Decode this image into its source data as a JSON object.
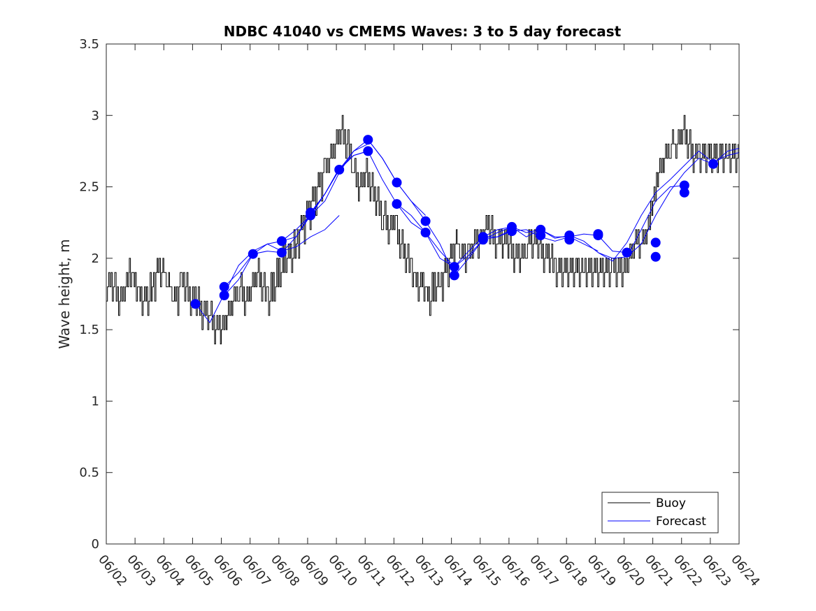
{
  "chart_data": {
    "type": "line",
    "title": "NDBC 41040 vs CMEMS Waves: 3 to 5 day forecast",
    "xlabel": "",
    "ylabel": "Wave height, m",
    "xlim": [
      "06/02",
      "06/24"
    ],
    "ylim": [
      0,
      3.5
    ],
    "x_ticks": [
      "06/02",
      "06/03",
      "06/04",
      "06/05",
      "06/06",
      "06/07",
      "06/08",
      "06/09",
      "06/10",
      "06/11",
      "06/12",
      "06/13",
      "06/14",
      "06/15",
      "06/16",
      "06/17",
      "06/18",
      "06/19",
      "06/20",
      "06/21",
      "06/22",
      "06/23",
      "06/24"
    ],
    "y_ticks": [
      "0",
      "0.5",
      "1",
      "1.5",
      "2",
      "2.5",
      "3",
      "3.5"
    ],
    "grid": false,
    "legend": {
      "position": "bottom-right",
      "entries": [
        "Buoy",
        "Forecast"
      ]
    },
    "colors": {
      "buoy": "#000000",
      "forecast": "#0000ff",
      "axes": "#262626"
    },
    "series": [
      {
        "name": "Buoy",
        "color": "#000000",
        "x_day": [
          0.0,
          0.3,
          0.5,
          0.7,
          0.8,
          1.0,
          1.2,
          1.4,
          1.6,
          1.8,
          2.0,
          2.2,
          2.4,
          2.6,
          2.8,
          3.0,
          3.2,
          3.4,
          3.6,
          3.8,
          4.0,
          4.2,
          4.4,
          4.6,
          4.8,
          5.0,
          5.2,
          5.4,
          5.6,
          5.8,
          6.0,
          6.2,
          6.4,
          6.6,
          6.8,
          7.0,
          7.2,
          7.4,
          7.6,
          7.8,
          8.0,
          8.2,
          8.4,
          8.6,
          8.8,
          9.0,
          9.2,
          9.4,
          9.6,
          9.8,
          10.0,
          10.2,
          10.4,
          10.6,
          10.8,
          11.0,
          11.2,
          11.4,
          11.6,
          11.8,
          12.0,
          12.2,
          12.4,
          12.6,
          12.8,
          13.0,
          13.2,
          13.4,
          13.6,
          13.8,
          14.0,
          14.2,
          14.4,
          14.6,
          14.8,
          15.0,
          15.2,
          15.4,
          15.6,
          15.8,
          16.0,
          16.2,
          16.4,
          16.6,
          16.8,
          17.0,
          17.2,
          17.4,
          17.6,
          17.8,
          18.0,
          18.2,
          18.4,
          18.6,
          18.8,
          19.0,
          19.2,
          19.4,
          19.6,
          19.8,
          20.0,
          20.2,
          20.4,
          20.6,
          20.8,
          21.0,
          21.2,
          21.4,
          21.6,
          21.8,
          22.0
        ],
        "values": [
          1.8,
          1.8,
          1.7,
          1.8,
          1.9,
          1.8,
          1.7,
          1.7,
          1.8,
          1.9,
          1.9,
          1.8,
          1.7,
          1.8,
          1.8,
          1.7,
          1.7,
          1.6,
          1.6,
          1.5,
          1.5,
          1.6,
          1.7,
          1.8,
          1.7,
          1.8,
          1.9,
          1.8,
          1.7,
          1.8,
          1.9,
          2.0,
          2.0,
          2.1,
          2.2,
          2.3,
          2.4,
          2.5,
          2.6,
          2.7,
          2.8,
          2.9,
          2.8,
          2.6,
          2.5,
          2.6,
          2.5,
          2.4,
          2.3,
          2.2,
          2.3,
          2.1,
          2.0,
          1.9,
          1.8,
          1.8,
          1.7,
          1.8,
          1.8,
          1.9,
          2.0,
          2.1,
          2.0,
          2.0,
          2.1,
          2.1,
          2.2,
          2.2,
          2.1,
          2.1,
          2.1,
          2.0,
          2.0,
          2.1,
          2.1,
          2.1,
          2.0,
          2.0,
          1.9,
          1.9,
          1.9,
          1.9,
          1.9,
          1.9,
          1.9,
          1.9,
          1.9,
          1.9,
          1.9,
          1.9,
          1.9,
          2.0,
          2.1,
          2.1,
          2.2,
          2.4,
          2.6,
          2.7,
          2.8,
          2.8,
          2.9,
          2.8,
          2.7,
          2.7,
          2.7,
          2.7,
          2.7,
          2.7,
          2.7,
          2.7,
          2.7
        ]
      },
      {
        "name": "Forecast",
        "color": "#0000ff",
        "runs": [
          {
            "x_day": [
              3.1,
              3.6,
              4.1,
              4.6,
              5.1,
              5.6,
              6.1,
              6.6,
              7.1,
              7.6,
              8.1
            ],
            "values": [
              1.68,
              1.55,
              1.75,
              1.95,
              2.05,
              2.1,
              2.05,
              2.08,
              2.15,
              2.2,
              2.3
            ]
          },
          {
            "x_day": [
              4.1,
              4.6,
              5.1,
              5.6,
              6.1,
              6.6,
              7.1,
              7.6,
              8.1,
              8.6,
              9.1
            ],
            "values": [
              1.8,
              1.9,
              2.03,
              2.1,
              2.12,
              2.15,
              2.3,
              2.4,
              2.6,
              2.75,
              2.8
            ]
          },
          {
            "x_day": [
              4.1,
              4.6,
              5.1,
              5.6,
              6.1,
              6.6,
              7.1,
              7.6,
              8.1,
              8.6,
              9.1
            ],
            "values": [
              1.74,
              1.85,
              2.03,
              2.05,
              2.04,
              2.15,
              2.31,
              2.45,
              2.62,
              2.72,
              2.75
            ]
          },
          {
            "x_day": [
              6.1,
              6.6,
              7.1,
              7.6,
              8.1,
              8.6,
              9.1,
              9.6,
              10.1,
              10.6,
              11.1
            ],
            "values": [
              2.12,
              2.2,
              2.3,
              2.45,
              2.62,
              2.75,
              2.83,
              2.7,
              2.53,
              2.4,
              2.3
            ]
          },
          {
            "x_day": [
              7.1,
              7.6,
              8.1,
              8.6,
              9.1,
              9.6,
              10.1,
              10.6,
              11.1,
              11.6,
              12.1
            ],
            "values": [
              2.32,
              2.45,
              2.63,
              2.72,
              2.75,
              2.55,
              2.38,
              2.25,
              2.18,
              2.05,
              1.94
            ]
          },
          {
            "x_day": [
              9.1,
              9.6,
              10.1,
              10.6,
              11.1,
              11.6,
              12.1,
              12.6,
              13.1,
              13.6,
              14.1
            ],
            "values": [
              2.83,
              2.7,
              2.53,
              2.4,
              2.26,
              2.1,
              1.88,
              2.0,
              2.13,
              2.15,
              2.2
            ]
          },
          {
            "x_day": [
              10.1,
              10.6,
              11.1,
              11.6,
              12.1,
              12.6,
              13.1,
              13.6,
              14.1,
              14.6,
              15.1
            ],
            "values": [
              2.38,
              2.3,
              2.18,
              2.0,
              1.94,
              2.05,
              2.15,
              2.2,
              2.22,
              2.15,
              2.2
            ]
          },
          {
            "x_day": [
              12.1,
              12.6,
              13.1,
              13.6,
              14.1,
              14.6,
              15.1,
              15.6,
              16.1,
              16.6,
              17.1
            ],
            "values": [
              1.94,
              2.02,
              2.13,
              2.18,
              2.22,
              2.18,
              2.2,
              2.15,
              2.15,
              2.1,
              2.05
            ]
          },
          {
            "x_day": [
              13.1,
              13.6,
              14.1,
              14.6,
              15.1,
              15.6,
              16.1,
              16.6,
              17.1,
              17.6,
              18.1
            ],
            "values": [
              2.15,
              2.15,
              2.19,
              2.2,
              2.15,
              2.12,
              2.15,
              2.17,
              2.16,
              2.05,
              2.04
            ]
          },
          {
            "x_day": [
              15.1,
              15.6,
              16.1,
              16.6,
              17.1,
              17.6,
              18.1,
              18.6,
              19.1,
              19.6,
              20.1
            ],
            "values": [
              2.2,
              2.14,
              2.16,
              2.12,
              2.04,
              2.0,
              2.01,
              2.2,
              2.4,
              2.5,
              2.51
            ]
          },
          {
            "x_day": [
              17.1,
              17.6,
              18.1,
              18.6,
              19.1,
              19.6,
              20.1,
              20.6,
              21.1,
              21.6,
              22.0
            ],
            "values": [
              2.04,
              1.98,
              2.11,
              2.3,
              2.46,
              2.55,
              2.65,
              2.75,
              2.67,
              2.72,
              2.74
            ]
          },
          {
            "x_day": [
              18.1,
              18.6,
              19.1,
              19.6,
              20.1,
              20.6,
              21.1,
              21.6,
              22.0
            ],
            "values": [
              2.01,
              2.1,
              2.3,
              2.47,
              2.6,
              2.7,
              2.66,
              2.75,
              2.77
            ]
          }
        ],
        "markers": {
          "x_day": [
            3.1,
            4.1,
            4.1,
            5.1,
            6.1,
            6.1,
            7.1,
            7.1,
            8.1,
            9.1,
            9.1,
            10.1,
            10.1,
            11.1,
            11.1,
            12.1,
            12.1,
            13.1,
            13.1,
            14.1,
            14.1,
            15.1,
            15.1,
            16.1,
            16.1,
            17.1,
            17.1,
            18.1,
            18.1,
            19.1,
            19.1,
            20.1,
            20.1,
            21.1
          ],
          "values": [
            1.68,
            1.8,
            1.74,
            2.03,
            2.12,
            2.04,
            2.32,
            2.3,
            2.62,
            2.83,
            2.75,
            2.53,
            2.38,
            2.26,
            2.18,
            1.94,
            1.88,
            2.15,
            2.13,
            2.22,
            2.19,
            2.2,
            2.16,
            2.16,
            2.13,
            2.17,
            2.16,
            2.04,
            2.04,
            2.11,
            2.01,
            2.51,
            2.46,
            2.66
          ]
        }
      }
    ]
  }
}
